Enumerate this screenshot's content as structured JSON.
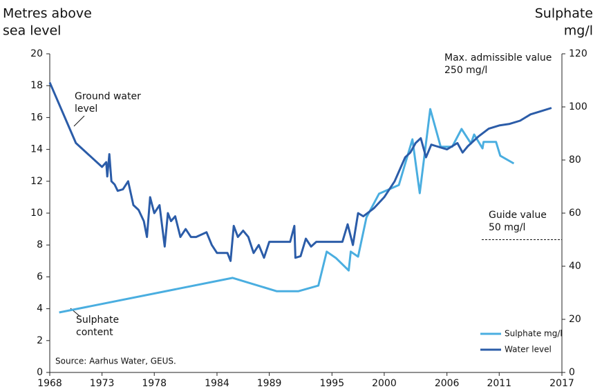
{
  "chart_data": {
    "type": "line",
    "y_title": [
      "Metres above",
      "sea level"
    ],
    "y2_title": [
      "Sulphate",
      "mg/l"
    ],
    "xlim": [
      1968,
      2017
    ],
    "xticks": [
      1968,
      1973,
      1978,
      1984,
      1989,
      1995,
      2000,
      2006,
      2011,
      2017
    ],
    "ylim": [
      0,
      20
    ],
    "yticks": [
      0,
      2,
      4,
      6,
      8,
      10,
      12,
      14,
      16,
      18,
      20
    ],
    "y2lim": [
      0,
      120
    ],
    "y2ticks": [
      0,
      20,
      40,
      60,
      80,
      100,
      120
    ],
    "legend": "lower right",
    "series": [
      {
        "name": "Sulphate mg/l",
        "color": "#4aaee0",
        "axis": "y2",
        "annotation": [
          "Sulphate",
          "content"
        ],
        "x": [
          1968.9,
          1985.5,
          1989.7,
          1991.8,
          1993.7,
          1994.5,
          1995.4,
          1996.6,
          1996.8,
          1997.5,
          1998.3,
          1999.5,
          2001.4,
          2002.7,
          2003.4,
          2004.4,
          2005.4,
          2006.5,
          2007.4,
          2008.3,
          2008.6,
          2009.4,
          2009.5,
          2010.7,
          2011.1,
          2012.4
        ],
        "values": [
          22.6,
          35.6,
          30.6,
          30.6,
          32.7,
          45.5,
          43,
          38.4,
          45.5,
          43.6,
          58.4,
          67.3,
          70.6,
          87.8,
          67.5,
          99.2,
          85,
          85,
          91.7,
          86.2,
          89.6,
          84.4,
          86.8,
          86.8,
          81.6,
          78.7
        ]
      },
      {
        "name": "Water level",
        "color": "#2b5ca8",
        "annotation": [
          "Ground water",
          "level"
        ],
        "x": [
          1968,
          1970.5,
          1973,
          1973.4,
          1973.5,
          1973.7,
          1973.9,
          1974.2,
          1974.5,
          1975,
          1975.5,
          1976,
          1976.5,
          1977,
          1977.3,
          1977.6,
          1978,
          1978.5,
          1979,
          1979.3,
          1979.6,
          1980,
          1980.5,
          1981,
          1981.5,
          1982,
          1983,
          1983.5,
          1984,
          1985,
          1985.3,
          1985.6,
          1986,
          1986.5,
          1987,
          1987.5,
          1988,
          1988.5,
          1989,
          1990,
          1991,
          1991.4,
          1991.5,
          1992,
          1992.5,
          1993,
          1993.5,
          1994,
          1996,
          1996.5,
          1997,
          1997.5,
          1998,
          1999,
          2000,
          2001,
          2002,
          2002.5,
          2003,
          2003.5,
          2004,
          2004.5,
          2005,
          2006,
          2007,
          2007.5,
          2008,
          2009,
          2010,
          2011,
          2012,
          2013,
          2014,
          2015,
          2016
        ],
        "values": [
          18.2,
          14.4,
          12.9,
          13.2,
          12.3,
          13.7,
          12.0,
          11.8,
          11.4,
          11.5,
          12.0,
          10.5,
          10.2,
          9.5,
          8.5,
          11.0,
          10.0,
          10.5,
          7.9,
          10.0,
          9.5,
          9.8,
          8.5,
          9.0,
          8.5,
          8.5,
          8.8,
          8.0,
          7.5,
          7.5,
          7.0,
          9.2,
          8.5,
          8.9,
          8.5,
          7.5,
          8.0,
          7.2,
          8.2,
          8.2,
          8.2,
          9.2,
          7.2,
          7.3,
          8.4,
          7.9,
          8.2,
          8.2,
          8.2,
          9.3,
          8.0,
          10.0,
          9.8,
          10.3,
          11.0,
          12.0,
          13.5,
          13.8,
          14.4,
          14.7,
          13.5,
          14.3,
          14.2,
          14.0,
          14.4,
          13.8,
          14.2,
          14.8,
          15.3,
          15.5,
          15.6,
          15.8,
          16.2,
          16.4,
          16.6
        ]
      }
    ],
    "max_value": [
      "Max. admissible value",
      "250 mg/l"
    ],
    "guide_value": {
      "label": [
        "Guide value",
        "50 mg/l"
      ],
      "value": 50
    },
    "source": "Source: Aarhus Water, GEUS."
  }
}
